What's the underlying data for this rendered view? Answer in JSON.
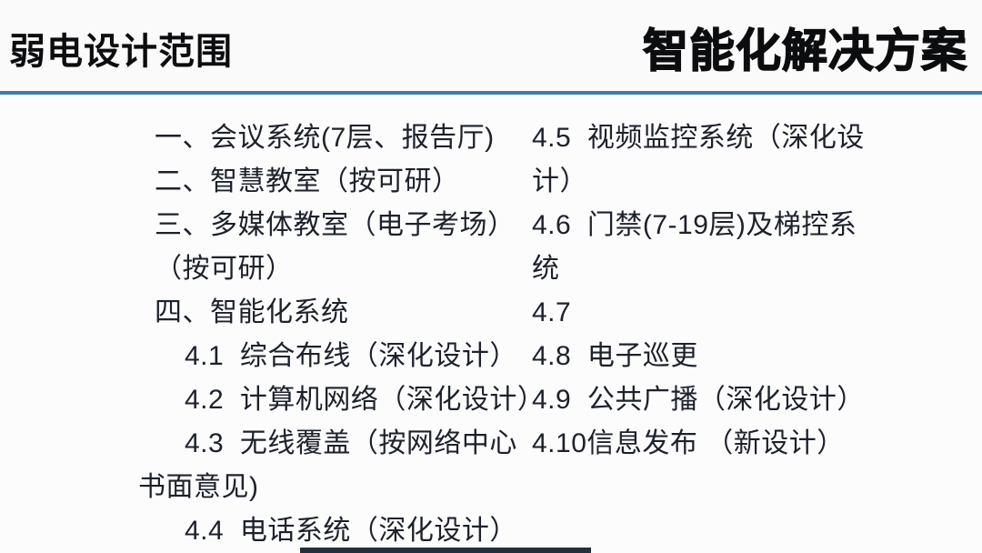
{
  "slide": {
    "header": {
      "left_title": "弱电设计范围",
      "right_title": "智能化解决方案"
    },
    "colors": {
      "divider_blue": "#3e7dab",
      "body_text": "#1c212b",
      "title_text": "#0c0d0f",
      "background": "#fdfcfd",
      "bottom_bar_navy": "#22303e"
    },
    "left_column": {
      "lines": [
        "一、会议系统(7层、报告厅)",
        "二、智慧教室（按可研）",
        "三、多媒体教室（电子考场）",
        "（按可研）",
        "四、智能化系统",
        "4.1  综合布线（深化设计）",
        "4.2  计算机网络（深化设计）",
        "4.3  无线覆盖（按网络中心",
        "书面意见)",
        "4.4  电话系统（深化设计）"
      ]
    },
    "right_column": {
      "lines": [
        "4.5  视频监控系统（深化设",
        "计）",
        "4.6  门禁(7-19层)及梯控系",
        "统",
        "4.7",
        "4.8  电子巡更",
        "4.9  公共广播（深化设计）",
        "4.10信息发布 （新设计）"
      ]
    }
  }
}
